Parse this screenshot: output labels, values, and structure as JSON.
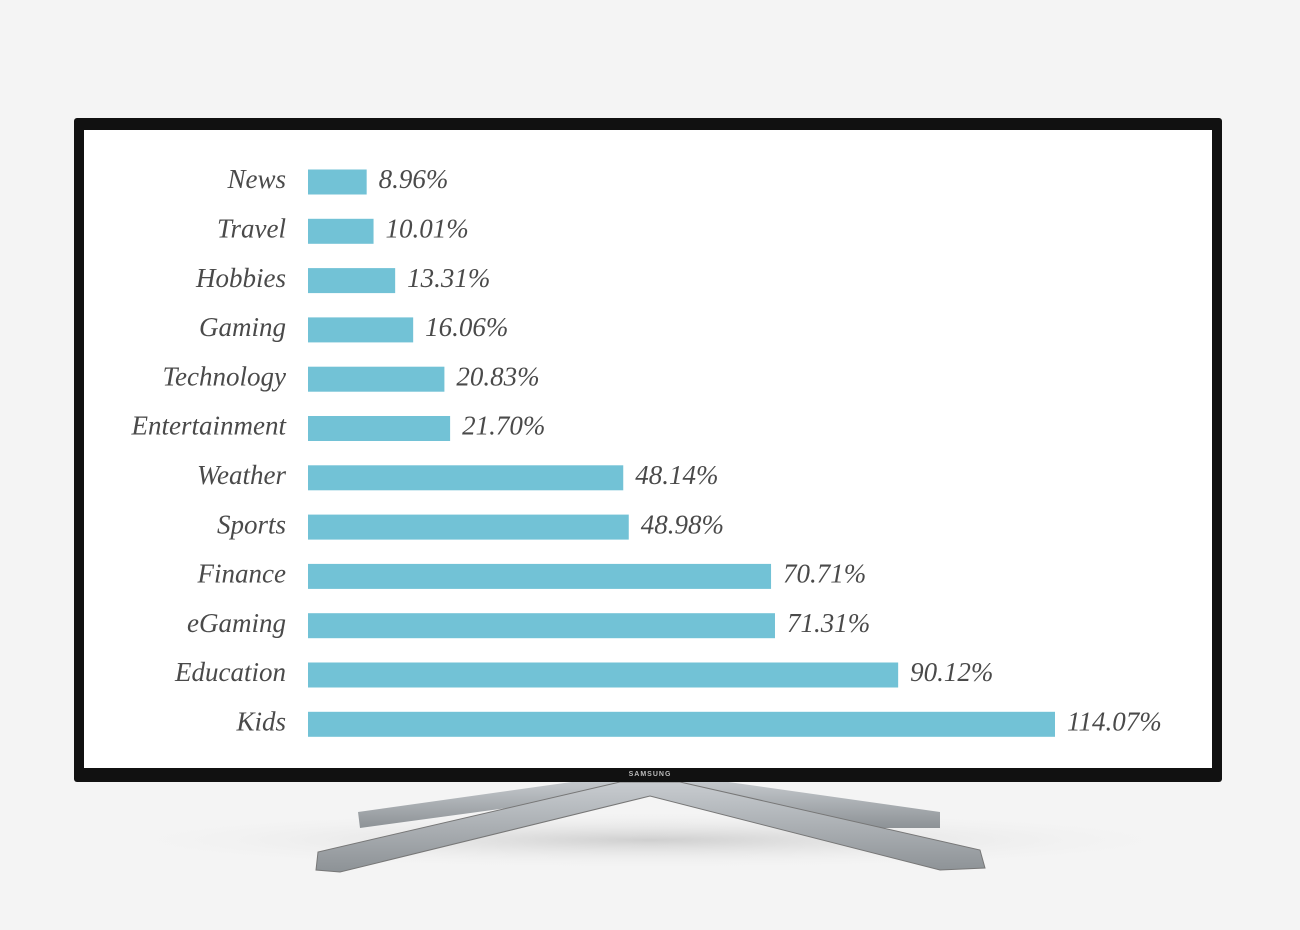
{
  "chart_data": {
    "type": "bar",
    "orientation": "horizontal",
    "categories": [
      "News",
      "Travel",
      "Hobbies",
      "Gaming",
      "Technology",
      "Entertainment",
      "Weather",
      "Sports",
      "Finance",
      "eGaming",
      "Education",
      "Kids"
    ],
    "values": [
      8.96,
      10.01,
      13.31,
      16.06,
      20.83,
      21.7,
      48.14,
      48.98,
      70.71,
      71.31,
      90.12,
      114.07
    ],
    "value_labels": [
      "8.96%",
      "10.01%",
      "13.31%",
      "16.06%",
      "20.83%",
      "21.70%",
      "48.14%",
      "48.98%",
      "70.71%",
      "71.31%",
      "90.12%",
      "114.07%"
    ],
    "color": "#72c2d6"
  },
  "device": {
    "brand": "SAMSUNG"
  }
}
